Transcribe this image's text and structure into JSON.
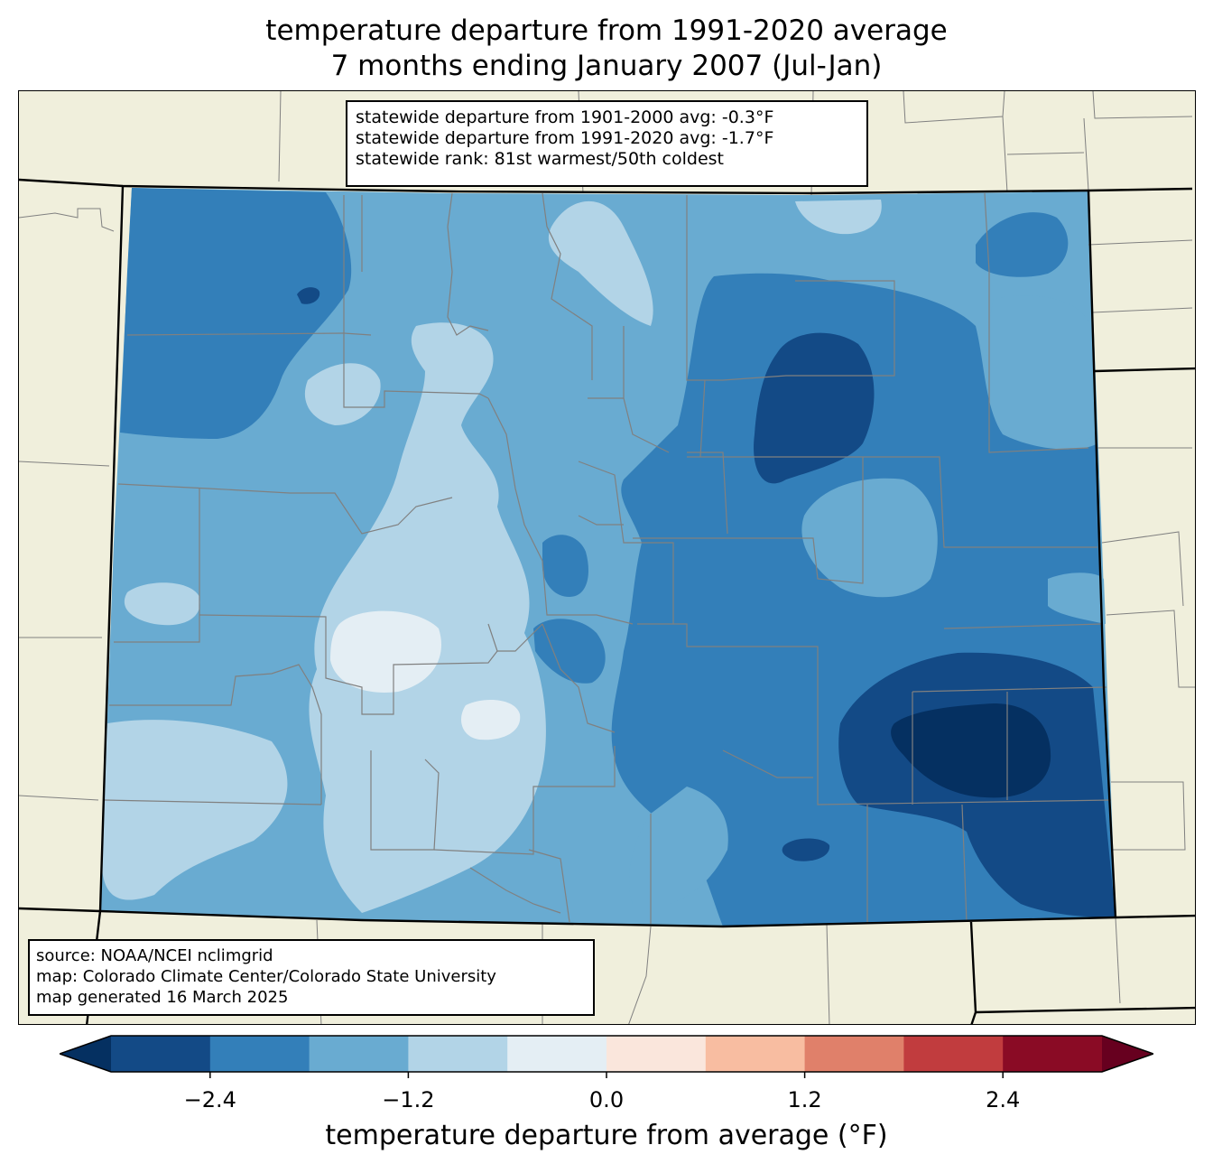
{
  "title": {
    "line1": "temperature departure from 1991-2020 average",
    "line2": "7 months ending January 2007 (Jul-Jan)"
  },
  "stats": {
    "line1": "statewide departure from 1901-2000 avg: -0.3°F",
    "line2": "statewide departure from 1991-2020 avg: -1.7°F",
    "line3": "statewide rank: 81st warmest/50th coldest"
  },
  "source": {
    "line1": "source: NOAA/NCEI nclimgrid",
    "line2": "map: Colorado Climate Center/Colorado State University",
    "line3": "map generated 16 March 2025"
  },
  "colorbar": {
    "label": "temperature departure from average (°F)",
    "ticks": [
      "−2.4",
      "−1.2",
      "0.0",
      "1.2",
      "2.4"
    ],
    "tick_values": [
      -2.4,
      -1.2,
      0.0,
      1.2,
      2.4
    ],
    "range": [
      -3.0,
      3.0
    ],
    "step": 0.6,
    "under_color": "#053061",
    "over_color": "#67001f",
    "colors": [
      "#134a86",
      "#337fb9",
      "#69abd1",
      "#b2d4e7",
      "#e4eef4",
      "#fae6dc",
      "#f8bda1",
      "#e0806a",
      "#c13c3e",
      "#8a0b25"
    ]
  },
  "map_colors": {
    "land_background": "#f0efdc",
    "county_lines": "#808080",
    "state_lines": "#000000",
    "level_m24": "#134a86",
    "level_m18": "#337fb9",
    "level_m12": "#69abd1",
    "level_m06": "#b2d4e7",
    "level_00": "#e4eef4",
    "level_min": "#053061"
  }
}
